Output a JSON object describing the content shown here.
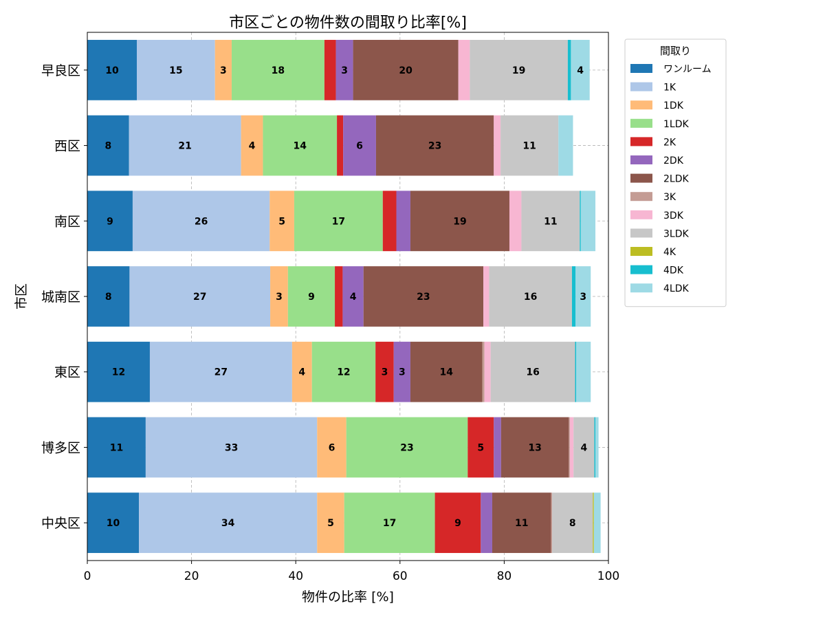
{
  "chart_data": {
    "type": "bar",
    "orientation": "horizontal",
    "stacked": true,
    "title": "市区ごとの物件数の間取り比率[%]",
    "xlabel": "物件の比率 [%]",
    "ylabel": "市区",
    "xlim": [
      0,
      100
    ],
    "xticks": [
      "0",
      "20",
      "40",
      "60",
      "80",
      "100"
    ],
    "grid": true,
    "legend_title": "間取り",
    "legend_position": "outside-top-right",
    "categories": [
      "中央区",
      "博多区",
      "東区",
      "城南区",
      "南区",
      "西区",
      "早良区"
    ],
    "series": [
      {
        "name": "ワンルーム",
        "color": "#1f77b4",
        "values": [
          9.9,
          11.2,
          12.0,
          8.1,
          8.7,
          8.0,
          9.5
        ],
        "labels": [
          "10",
          "11",
          "12",
          "8",
          "9",
          "8",
          "10"
        ]
      },
      {
        "name": "1K",
        "color": "#aec7e8",
        "values": [
          34.2,
          32.9,
          27.3,
          27.0,
          26.3,
          21.5,
          15.0
        ],
        "labels": [
          "34",
          "33",
          "27",
          "27",
          "26",
          "21",
          "15"
        ]
      },
      {
        "name": "1DK",
        "color": "#ffbb78",
        "values": [
          5.2,
          5.6,
          3.8,
          3.4,
          4.7,
          4.2,
          3.2
        ],
        "labels": [
          "5",
          "6",
          "4",
          "3",
          "5",
          "4",
          "3"
        ]
      },
      {
        "name": "1LDK",
        "color": "#98df8a",
        "values": [
          17.4,
          23.3,
          12.2,
          9.0,
          17.0,
          14.2,
          17.8
        ],
        "labels": [
          "17",
          "23",
          "12",
          "9",
          "17",
          "14",
          "18"
        ]
      },
      {
        "name": "2K",
        "color": "#d62728",
        "values": [
          8.8,
          5.0,
          3.5,
          1.5,
          2.6,
          1.2,
          2.2
        ],
        "labels": [
          "9",
          "5",
          "3",
          "",
          "",
          "",
          ""
        ]
      },
      {
        "name": "2DK",
        "color": "#9467bd",
        "values": [
          2.2,
          1.4,
          3.2,
          4.0,
          2.7,
          6.3,
          3.3
        ],
        "labels": [
          "",
          "",
          "3",
          "4",
          "",
          "6",
          "3"
        ]
      },
      {
        "name": "2LDK",
        "color": "#8c564b",
        "values": [
          11.3,
          13.0,
          13.8,
          23.0,
          19.0,
          22.6,
          20.2
        ],
        "labels": [
          "11",
          "13",
          "14",
          "23",
          "19",
          "23",
          "20"
        ]
      },
      {
        "name": "3K",
        "color": "#c49c94",
        "values": [
          0.2,
          0.2,
          0.4,
          0.0,
          0.0,
          0.0,
          0.0
        ],
        "labels": [
          "",
          "",
          "",
          "",
          "",
          "",
          ""
        ]
      },
      {
        "name": "3DK",
        "color": "#f7b6d2",
        "values": [
          0.0,
          0.7,
          1.2,
          1.1,
          2.3,
          1.3,
          2.2
        ],
        "labels": [
          "",
          "",
          "",
          "",
          "",
          "",
          ""
        ]
      },
      {
        "name": "3LDK",
        "color": "#c7c7c7",
        "values": [
          7.8,
          4.0,
          16.2,
          15.9,
          11.2,
          11.1,
          18.8
        ],
        "labels": [
          "8",
          "4",
          "16",
          "16",
          "11",
          "11",
          "19"
        ]
      },
      {
        "name": "4K",
        "color": "#bcbd22",
        "values": [
          0.2,
          0.0,
          0.0,
          0.0,
          0.0,
          0.0,
          0.0
        ],
        "labels": [
          "",
          "",
          "",
          "",
          "",
          "",
          ""
        ]
      },
      {
        "name": "4DK",
        "color": "#17becf",
        "values": [
          0.0,
          0.2,
          0.2,
          0.7,
          0.2,
          0.0,
          0.6
        ],
        "labels": [
          "",
          "",
          "",
          "",
          "",
          "",
          ""
        ]
      },
      {
        "name": "4LDK",
        "color": "#9edae5",
        "values": [
          1.3,
          0.6,
          2.8,
          2.9,
          2.8,
          2.8,
          3.6
        ],
        "labels": [
          "",
          "",
          "",
          "3",
          "",
          "",
          "4"
        ]
      }
    ]
  }
}
